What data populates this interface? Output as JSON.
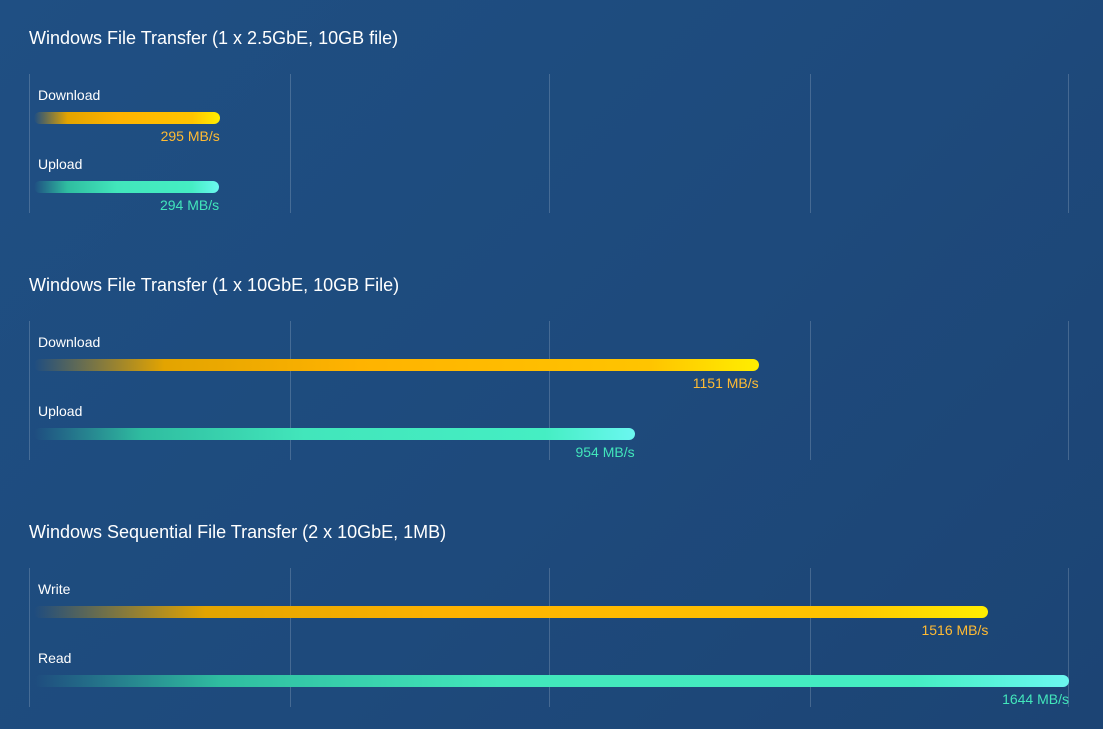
{
  "chart_data": [
    {
      "type": "bar",
      "title": "Windows File Transfer (1 x 2.5GbE, 10GB file)",
      "unit": "MB/s",
      "xlim": [
        0,
        1644
      ],
      "series": [
        {
          "name": "Download",
          "value": 295,
          "value_label": "295 MB/s",
          "color": "#ffb300"
        },
        {
          "name": "Upload",
          "value": 294,
          "value_label": "294 MB/s",
          "color": "#42e6bb"
        }
      ]
    },
    {
      "type": "bar",
      "title": "Windows File Transfer (1 x 10GbE, 10GB File)",
      "unit": "MB/s",
      "xlim": [
        0,
        1644
      ],
      "series": [
        {
          "name": "Download",
          "value": 1151,
          "value_label": "1151 MB/s",
          "color": "#ffb300"
        },
        {
          "name": "Upload",
          "value": 954,
          "value_label": "954 MB/s",
          "color": "#42e6bb"
        }
      ]
    },
    {
      "type": "bar",
      "title": "Windows Sequential File Transfer (2 x 10GbE, 1MB)",
      "unit": "MB/s",
      "xlim": [
        0,
        1644
      ],
      "series": [
        {
          "name": "Write",
          "value": 1516,
          "value_label": "1516 MB/s",
          "color": "#ffb300"
        },
        {
          "name": "Read",
          "value": 1644,
          "value_label": "1644 MB/s",
          "color": "#42e6bb"
        }
      ]
    }
  ]
}
